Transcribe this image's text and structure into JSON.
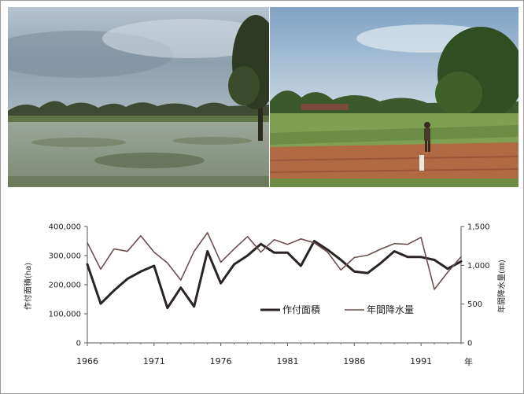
{
  "photos": {
    "left": {
      "description_icon": "flooded-paddy-photo"
    },
    "right": {
      "description_icon": "dry-field-photo"
    }
  },
  "chart_data": {
    "type": "line",
    "title": "",
    "x": [
      1966,
      1967,
      1968,
      1969,
      1970,
      1971,
      1972,
      1973,
      1974,
      1975,
      1976,
      1977,
      1978,
      1979,
      1980,
      1981,
      1982,
      1983,
      1984,
      1985,
      1986,
      1987,
      1988,
      1989,
      1990,
      1991,
      1992,
      1993,
      1994
    ],
    "xticks": [
      "1966",
      "1971",
      "1976",
      "1981",
      "1986",
      "1991"
    ],
    "xunit": "年",
    "xlim": [
      1966,
      1994
    ],
    "series": [
      {
        "name": "作付面積",
        "axis": "left",
        "color": "#2b2424",
        "width": "bold",
        "values": [
          270000,
          135000,
          180000,
          220000,
          245000,
          265000,
          120000,
          190000,
          125000,
          315000,
          205000,
          270000,
          300000,
          340000,
          310000,
          310000,
          265000,
          350000,
          320000,
          285000,
          245000,
          240000,
          275000,
          315000,
          295000,
          295000,
          285000,
          255000,
          280000
        ]
      },
      {
        "name": "年間降水量",
        "axis": "right",
        "color": "#6b4f4f",
        "width": "regular",
        "values": [
          1290,
          950,
          1210,
          1180,
          1380,
          1170,
          1030,
          810,
          1180,
          1420,
          1040,
          1210,
          1370,
          1170,
          1330,
          1270,
          1340,
          1290,
          1170,
          940,
          1100,
          1130,
          1210,
          1280,
          1270,
          1360,
          690,
          910,
          1110
        ]
      }
    ],
    "y_left": {
      "label": "作付面積(ha)",
      "ylim": [
        0,
        400000
      ],
      "ticks": [
        "0",
        "100,000",
        "200,000",
        "300,000",
        "400,000"
      ]
    },
    "y_right": {
      "label": "年間降水量(㎜)",
      "ylim": [
        0,
        1500
      ],
      "ticks": [
        "0",
        "500",
        "1,000",
        "1,500"
      ]
    },
    "legend": {
      "placement": "lower-center"
    },
    "grid": false
  }
}
